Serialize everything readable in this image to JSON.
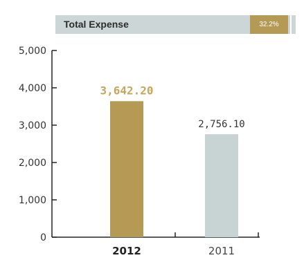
{
  "header": {
    "title": "Total Expense",
    "change_badge": "32.2%",
    "badge_color": "#b59a55",
    "bar_color": "#cdd6d6"
  },
  "chart_data": {
    "type": "bar",
    "categories": [
      "2012",
      "2011"
    ],
    "values": [
      3642.2,
      2756.1
    ],
    "data_labels": [
      "3,642.20",
      "2,756.10"
    ],
    "bar_colors": [
      "#b59a55",
      "#c8d3d3"
    ],
    "data_label_colors": [
      "#c8a55c",
      "#333333"
    ],
    "category_label_colors": [
      "#222222",
      "#444444"
    ],
    "category_bold": [
      true,
      false
    ],
    "ylim": [
      0,
      5000
    ],
    "yticks": [
      0,
      1000,
      2000,
      3000,
      4000,
      5000
    ],
    "ytick_labels": [
      "0",
      "1,000",
      "2,000",
      "3,000",
      "4,000",
      "5,000"
    ],
    "grid": false,
    "title": "",
    "xlabel": "",
    "ylabel": ""
  }
}
